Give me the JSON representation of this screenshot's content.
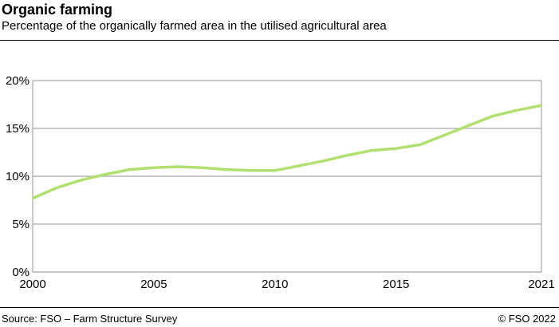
{
  "header": {
    "title": "Organic farming",
    "subtitle": "Percentage of the organically farmed area in the utilised agricultural area"
  },
  "footer": {
    "source": "Source: FSO – Farm Structure Survey",
    "copyright": "© FSO 2022"
  },
  "chart_data": {
    "type": "line",
    "title": "Organic farming",
    "subtitle": "Percentage of the organically farmed area in the utilised agricultural area",
    "x": [
      2000,
      2001,
      2002,
      2003,
      2004,
      2005,
      2006,
      2007,
      2008,
      2009,
      2010,
      2011,
      2012,
      2013,
      2014,
      2015,
      2016,
      2017,
      2018,
      2019,
      2020,
      2021
    ],
    "series": [
      {
        "values": [
          7.7,
          8.8,
          9.6,
          10.2,
          10.7,
          10.9,
          11.0,
          10.9,
          10.7,
          10.6,
          10.6,
          11.1,
          11.6,
          12.2,
          12.7,
          12.9,
          13.3,
          14.3,
          15.3,
          16.3,
          16.9,
          17.4
        ],
        "color": "#b2e070"
      }
    ],
    "xlim": [
      2000,
      2021
    ],
    "ylim": [
      0,
      20
    ],
    "x_ticks": [
      "2000",
      "2005",
      "2010",
      "2015",
      "2021"
    ],
    "y_ticks": [
      "0%",
      "5%",
      "10%",
      "15%",
      "20%"
    ],
    "grid": "horizontal",
    "xlabel": "",
    "ylabel": ""
  }
}
